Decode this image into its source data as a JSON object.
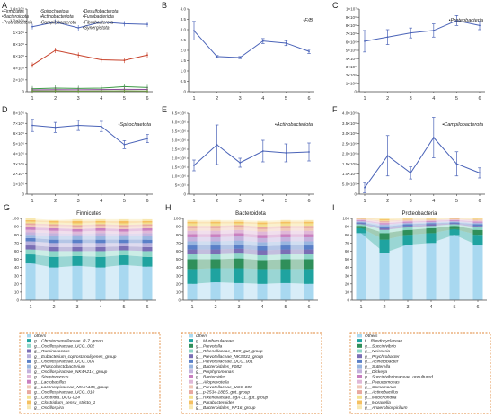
{
  "colors": {
    "line_blue": "#4a63b8",
    "line_red": "#c8412a",
    "line_green": "#3d9a45",
    "axis": "#444444",
    "legend_border": "#e08a3c"
  },
  "chart_data": [
    {
      "type": "line",
      "panel": "A",
      "x": [
        1,
        2,
        3,
        4,
        5,
        6
      ],
      "ylim": [
        0,
        1400000000
      ],
      "yticks": [
        "0",
        "2×10⁸",
        "4×10⁸",
        "6×10⁸",
        "8×10⁸",
        "1×10⁹",
        "1.2×10⁹",
        "1.4×10⁹"
      ],
      "legend": [
        [
          "Firmicutes",
          "Spirochaetota",
          "Desulfobacterota"
        ],
        [
          "Bacteroidota",
          "Actinobacteriota",
          "Fusobacteriota"
        ],
        [
          "Proteobacteria",
          "Campilobacterota",
          "Fibrobacterota"
        ],
        [
          "",
          "",
          "Synergistota"
        ]
      ],
      "series": [
        {
          "name": "Firmicutes",
          "color": "#4a63b8",
          "values": [
            1100000000,
            1180000000,
            1080000000,
            1180000000,
            1150000000,
            1140000000
          ]
        },
        {
          "name": "Bacteroidota",
          "color": "#c8412a",
          "values": [
            450000000,
            700000000,
            620000000,
            540000000,
            530000000,
            620000000
          ]
        },
        {
          "name": "Proteobacteria",
          "color": "#3d9a45",
          "values": [
            50000000,
            60000000,
            55000000,
            60000000,
            85000000,
            70000000
          ]
        },
        {
          "name": "Spirochaetota",
          "color": "#8a4a9a",
          "values": [
            30000000,
            35000000,
            32000000,
            36000000,
            40000000,
            38000000
          ]
        },
        {
          "name": "Actinobacteriota",
          "color": "#6a9a3a",
          "values": [
            12000000,
            14000000,
            10000000,
            13000000,
            15000000,
            12000000
          ]
        }
      ]
    },
    {
      "type": "line",
      "panel": "B",
      "label": "F/B",
      "x": [
        1,
        2,
        3,
        4,
        5,
        6
      ],
      "ylim": [
        0,
        4.0
      ],
      "yticks": [
        "0",
        "0.5",
        "1.0",
        "1.5",
        "2.0",
        "2.5",
        "3.0",
        "3.5",
        "4.0"
      ],
      "values": [
        2.95,
        1.7,
        1.65,
        2.45,
        2.35,
        1.95
      ],
      "errors": [
        0.45,
        0.05,
        0.05,
        0.12,
        0.12,
        0.1
      ]
    },
    {
      "type": "line",
      "panel": "C",
      "label": "Proteobacteria",
      "x": [
        1,
        2,
        3,
        4,
        5,
        6
      ],
      "ylim": [
        0,
        10000000
      ],
      "yticks": [
        "0",
        "1×10⁶",
        "2×10⁶",
        "3×10⁶",
        "4×10⁶",
        "5×10⁶",
        "6×10⁶",
        "7×10⁶",
        "8×10⁶",
        "9×10⁶",
        "1×10⁷"
      ],
      "values": [
        6100000,
        6600000,
        7100000,
        7400000,
        8600000,
        8000000
      ],
      "errors": [
        1300000,
        900000,
        600000,
        800000,
        600000,
        500000
      ]
    },
    {
      "type": "line",
      "panel": "D",
      "label": "Spirochaetota",
      "x": [
        1,
        2,
        3,
        4,
        5,
        6
      ],
      "ylim": [
        0,
        8000000
      ],
      "yticks": [
        "0",
        "1×10⁶",
        "2×10⁶",
        "3×10⁶",
        "4×10⁶",
        "5×10⁶",
        "6×10⁶",
        "7×10⁶",
        "8×10⁶"
      ],
      "values": [
        6800000,
        6600000,
        6800000,
        6700000,
        4900000,
        5500000
      ],
      "errors": [
        600000,
        500000,
        500000,
        500000,
        400000,
        400000
      ]
    },
    {
      "type": "line",
      "panel": "E",
      "label": "Actinobacteriota",
      "x": [
        1,
        2,
        3,
        4,
        5,
        6
      ],
      "ylim": [
        0,
        4500000
      ],
      "yticks": [
        "0",
        "5×10⁵",
        "1.0×10⁶",
        "1.5×10⁶",
        "2.0×10⁶",
        "2.5×10⁶",
        "3.0×10⁶",
        "3.5×10⁶",
        "4.0×10⁶",
        "4.5×10⁶"
      ],
      "values": [
        1600000,
        2750000,
        1750000,
        2400000,
        2300000,
        2350000
      ],
      "errors": [
        300000,
        1100000,
        250000,
        600000,
        500000,
        500000
      ]
    },
    {
      "type": "line",
      "panel": "F",
      "label": "Campilobacterota",
      "x": [
        1,
        2,
        3,
        4,
        5,
        6
      ],
      "ylim": [
        0,
        4000000
      ],
      "yticks": [
        "0",
        "5.0×10⁵",
        "1.0×10⁶",
        "1.5×10⁶",
        "2.0×10⁶",
        "2.5×10⁶",
        "3.0×10⁶",
        "3.5×10⁶",
        "4.0×10⁶"
      ],
      "values": [
        320000,
        1900000,
        1050000,
        2800000,
        1500000,
        1050000
      ],
      "errors": [
        250000,
        1000000,
        300000,
        1000000,
        600000,
        250000
      ]
    },
    {
      "type": "area",
      "panel": "G",
      "title": "Firmicutes",
      "x": [
        1,
        2,
        3,
        4,
        5,
        6
      ],
      "ylim": [
        0,
        100
      ],
      "yticks": [
        "0",
        "10",
        "20",
        "30",
        "40",
        "50",
        "60",
        "70",
        "80",
        "90",
        "100"
      ],
      "legend": [
        "others",
        "g__Christensenellaceae_R-7_group",
        "g__Oscillospiraceae_UCG_002",
        "g__Ruminococcus",
        "g__Eubacterium_coprostanoligenes_group",
        "g__Oscillospiraceae_UCG_005",
        "g__Phascolarctobacterium",
        "g__Oscillospiraceae_NK4A214_group",
        "g__Streptococcus",
        "g__Lactobacillus",
        "g__Lachnospiraceae_NK4A136_group",
        "g__Oscillospiraceae_UCG_010",
        "g__Clostridia_UCG-014",
        "g__Clostridium_sensu_stricto_1",
        "g__Oscillospira"
      ],
      "layers": [
        {
          "color": "#a8d8f0",
          "values": [
            45,
            40,
            42,
            40,
            43,
            41
          ]
        },
        {
          "color": "#1fa3a0",
          "values": [
            11,
            13,
            12,
            13,
            12,
            12
          ]
        },
        {
          "color": "#8ed6c8",
          "values": [
            6,
            7,
            6,
            7,
            6,
            7
          ]
        },
        {
          "color": "#7b6fb5",
          "values": [
            5,
            5,
            5,
            5,
            5,
            5
          ]
        },
        {
          "color": "#b7b0dc",
          "values": [
            5,
            5,
            5,
            5,
            4,
            5
          ]
        },
        {
          "color": "#5a80c8",
          "values": [
            4,
            4,
            4,
            4,
            4,
            4
          ]
        },
        {
          "color": "#9ab6e0",
          "values": [
            4,
            4,
            4,
            4,
            4,
            4
          ]
        },
        {
          "color": "#c4b2dd",
          "values": [
            3,
            4,
            3,
            4,
            3,
            4
          ]
        },
        {
          "color": "#e0b8d8",
          "values": [
            3,
            3,
            3,
            3,
            3,
            3
          ]
        },
        {
          "color": "#c980c0",
          "values": [
            3,
            3,
            3,
            3,
            3,
            3
          ]
        },
        {
          "color": "#f0c8b8",
          "values": [
            3,
            3,
            3,
            3,
            3,
            3
          ]
        },
        {
          "color": "#e8a8a0",
          "values": [
            2,
            2,
            2,
            2,
            2,
            2
          ]
        },
        {
          "color": "#f3e090",
          "values": [
            2,
            2,
            2,
            2,
            2,
            2
          ]
        },
        {
          "color": "#f5c060",
          "values": [
            2,
            2,
            3,
            2,
            3,
            2
          ]
        },
        {
          "color": "#f8e8b0",
          "values": [
            2,
            1,
            2,
            2,
            2,
            2
          ]
        }
      ]
    },
    {
      "type": "area",
      "panel": "H",
      "title": "Bacteroidota",
      "x": [
        1,
        2,
        3,
        4,
        5,
        6
      ],
      "ylim": [
        0,
        100
      ],
      "yticks": [
        "0",
        "10",
        "20",
        "30",
        "40",
        "50",
        "60",
        "70",
        "80",
        "90",
        "100"
      ],
      "legend": [
        "others",
        "g__Muribaculaceae",
        "g__Prevotella",
        "g__Rikenellaceae_RC9_gut_group",
        "g__Prevotellaceae_NK3B31_group",
        "g__Prevotellaceae_UCG_001",
        "g__Bacteroidales_F082",
        "g__Porphyromonas",
        "g__Bacteroides",
        "g__Alloprevotella",
        "g__Prevotellaceae_UCG-003",
        "g__p-2534-18B5_gut_group",
        "g__Rikenellaceae_dgA-11_gut_group",
        "g__Parabacteroides",
        "g__Bacteroidales_RF16_group"
      ],
      "layers": [
        {
          "color": "#a8d8f0",
          "values": [
            20,
            22,
            21,
            20,
            21,
            20
          ]
        },
        {
          "color": "#1fa3a0",
          "values": [
            18,
            17,
            18,
            18,
            17,
            18
          ]
        },
        {
          "color": "#2f8f5a",
          "values": [
            12,
            11,
            12,
            11,
            12,
            12
          ]
        },
        {
          "color": "#8ed6c8",
          "values": [
            6,
            6,
            6,
            6,
            6,
            6
          ]
        },
        {
          "color": "#7b6fb5",
          "values": [
            6,
            6,
            6,
            6,
            6,
            6
          ]
        },
        {
          "color": "#5a80c8",
          "values": [
            5,
            5,
            5,
            5,
            5,
            5
          ]
        },
        {
          "color": "#9ab6e0",
          "values": [
            5,
            5,
            5,
            5,
            5,
            5
          ]
        },
        {
          "color": "#c4b2dd",
          "values": [
            5,
            5,
            5,
            5,
            5,
            5
          ]
        },
        {
          "color": "#c980c0",
          "values": [
            4,
            4,
            4,
            4,
            4,
            4
          ]
        },
        {
          "color": "#e0b8d8",
          "values": [
            4,
            4,
            4,
            4,
            4,
            4
          ]
        },
        {
          "color": "#f0c8b8",
          "values": [
            3,
            3,
            3,
            3,
            3,
            3
          ]
        },
        {
          "color": "#e8a8a0",
          "values": [
            3,
            3,
            3,
            3,
            3,
            3
          ]
        },
        {
          "color": "#f3e090",
          "values": [
            3,
            3,
            2,
            3,
            3,
            3
          ]
        },
        {
          "color": "#f5c060",
          "values": [
            2,
            2,
            2,
            2,
            2,
            2
          ]
        },
        {
          "color": "#f8e8b0",
          "values": [
            2,
            2,
            2,
            2,
            2,
            2
          ]
        }
      ]
    },
    {
      "type": "area",
      "panel": "I",
      "title": "Proteobacteria",
      "x": [
        1,
        2,
        3,
        4,
        5,
        6
      ],
      "ylim": [
        0,
        100
      ],
      "yticks": [
        "0",
        "10",
        "20",
        "30",
        "40",
        "50",
        "60",
        "70",
        "80",
        "90",
        "100"
      ],
      "legend": [
        "Others",
        "f__Rhodocyclaceae",
        "g__Succinivibrio",
        "g__Neisseria",
        "g__Psychrobacter",
        "g__Acinetobacter",
        "g__Sutterella",
        "g__Dickeya",
        "g__Succinivibrionaceae_uncultured",
        "g__Pseudomonas",
        "g__Comamonas",
        "g__Actinobacillus",
        "g__Mitochondria",
        "g__Moraxella",
        "g__Anaerobiospirillum"
      ],
      "layers": [
        {
          "color": "#a8d8f0",
          "values": [
            82,
            58,
            68,
            70,
            80,
            67
          ]
        },
        {
          "color": "#1fa3a0",
          "values": [
            6,
            16,
            12,
            12,
            7,
            13
          ]
        },
        {
          "color": "#2f8f5a",
          "values": [
            3,
            8,
            6,
            6,
            4,
            6
          ]
        },
        {
          "color": "#8ed6c8",
          "values": [
            2,
            4,
            3,
            3,
            2,
            3
          ]
        },
        {
          "color": "#7b6fb5",
          "values": [
            1,
            2,
            2,
            2,
            1,
            2
          ]
        },
        {
          "color": "#5a80c8",
          "values": [
            1,
            2,
            2,
            1,
            1,
            2
          ]
        },
        {
          "color": "#9ab6e0",
          "values": [
            1,
            2,
            1,
            1,
            1,
            1
          ]
        },
        {
          "color": "#c4b2dd",
          "values": [
            1,
            1,
            1,
            1,
            1,
            1
          ]
        },
        {
          "color": "#c980c0",
          "values": [
            1,
            1,
            1,
            1,
            1,
            1
          ]
        },
        {
          "color": "#e0b8d8",
          "values": [
            0.5,
            1,
            1,
            0.5,
            0.5,
            1
          ]
        },
        {
          "color": "#f0c8b8",
          "values": [
            0.5,
            1,
            1,
            0.5,
            0.5,
            1
          ]
        },
        {
          "color": "#e8a8a0",
          "values": [
            0.5,
            1,
            0.5,
            0.5,
            0.5,
            0.5
          ]
        },
        {
          "color": "#f3e090",
          "values": [
            0.5,
            1,
            0.5,
            0.5,
            0.3,
            0.5
          ]
        },
        {
          "color": "#f5c060",
          "values": [
            0.5,
            1,
            0.5,
            0.5,
            0.2,
            0.5
          ]
        },
        {
          "color": "#f8e8b0",
          "values": [
            0.5,
            1,
            0.5,
            0.5,
            0.5,
            0.5
          ]
        }
      ]
    }
  ]
}
